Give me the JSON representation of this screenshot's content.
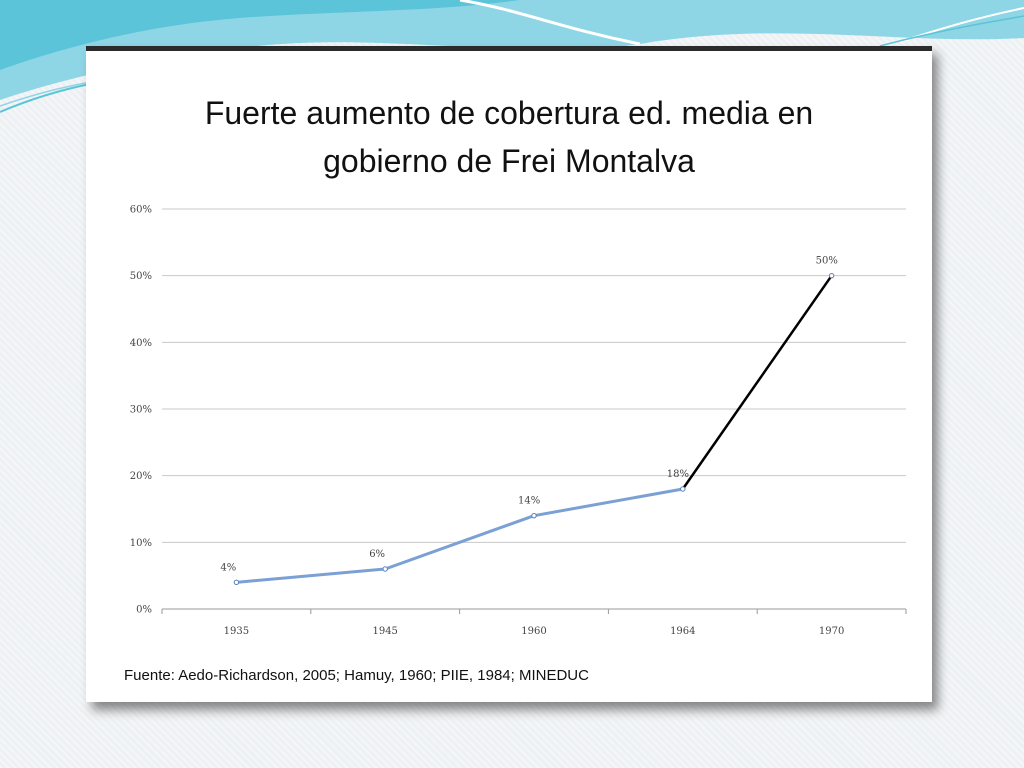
{
  "slide": {
    "title_line1": "Fuerte aumento de cobertura ed. media en",
    "title_line2": "gobierno de Frei Montalva",
    "source": "Fuente: Aedo-Richardson, 2005; Hamuy, 1960; PIIE, 1984; MINEDUC"
  },
  "colors": {
    "series_blue": "#7aa0d4",
    "series_black": "#000000",
    "grid": "#c8c8c8",
    "accent_teal": "#5bc4d8"
  },
  "chart_data": {
    "type": "line",
    "title": "Fuerte aumento de cobertura ed. media en gobierno de Frei Montalva",
    "xlabel": "",
    "ylabel": "",
    "categories": [
      "1935",
      "1945",
      "1960",
      "1964",
      "1970"
    ],
    "values": [
      4,
      6,
      14,
      18,
      50
    ],
    "data_labels": [
      "4%",
      "6%",
      "14%",
      "18%",
      "50%"
    ],
    "ylim": [
      0,
      60
    ],
    "y_ticks": [
      0,
      10,
      20,
      30,
      40,
      50,
      60
    ],
    "y_tick_labels": [
      "0%",
      "10%",
      "20%",
      "30%",
      "40%",
      "50%",
      "60%"
    ],
    "segments": [
      {
        "from_index": 0,
        "to_index": 3,
        "color": "blue"
      },
      {
        "from_index": 3,
        "to_index": 4,
        "color": "black"
      }
    ],
    "grid": true,
    "legend": "none"
  }
}
